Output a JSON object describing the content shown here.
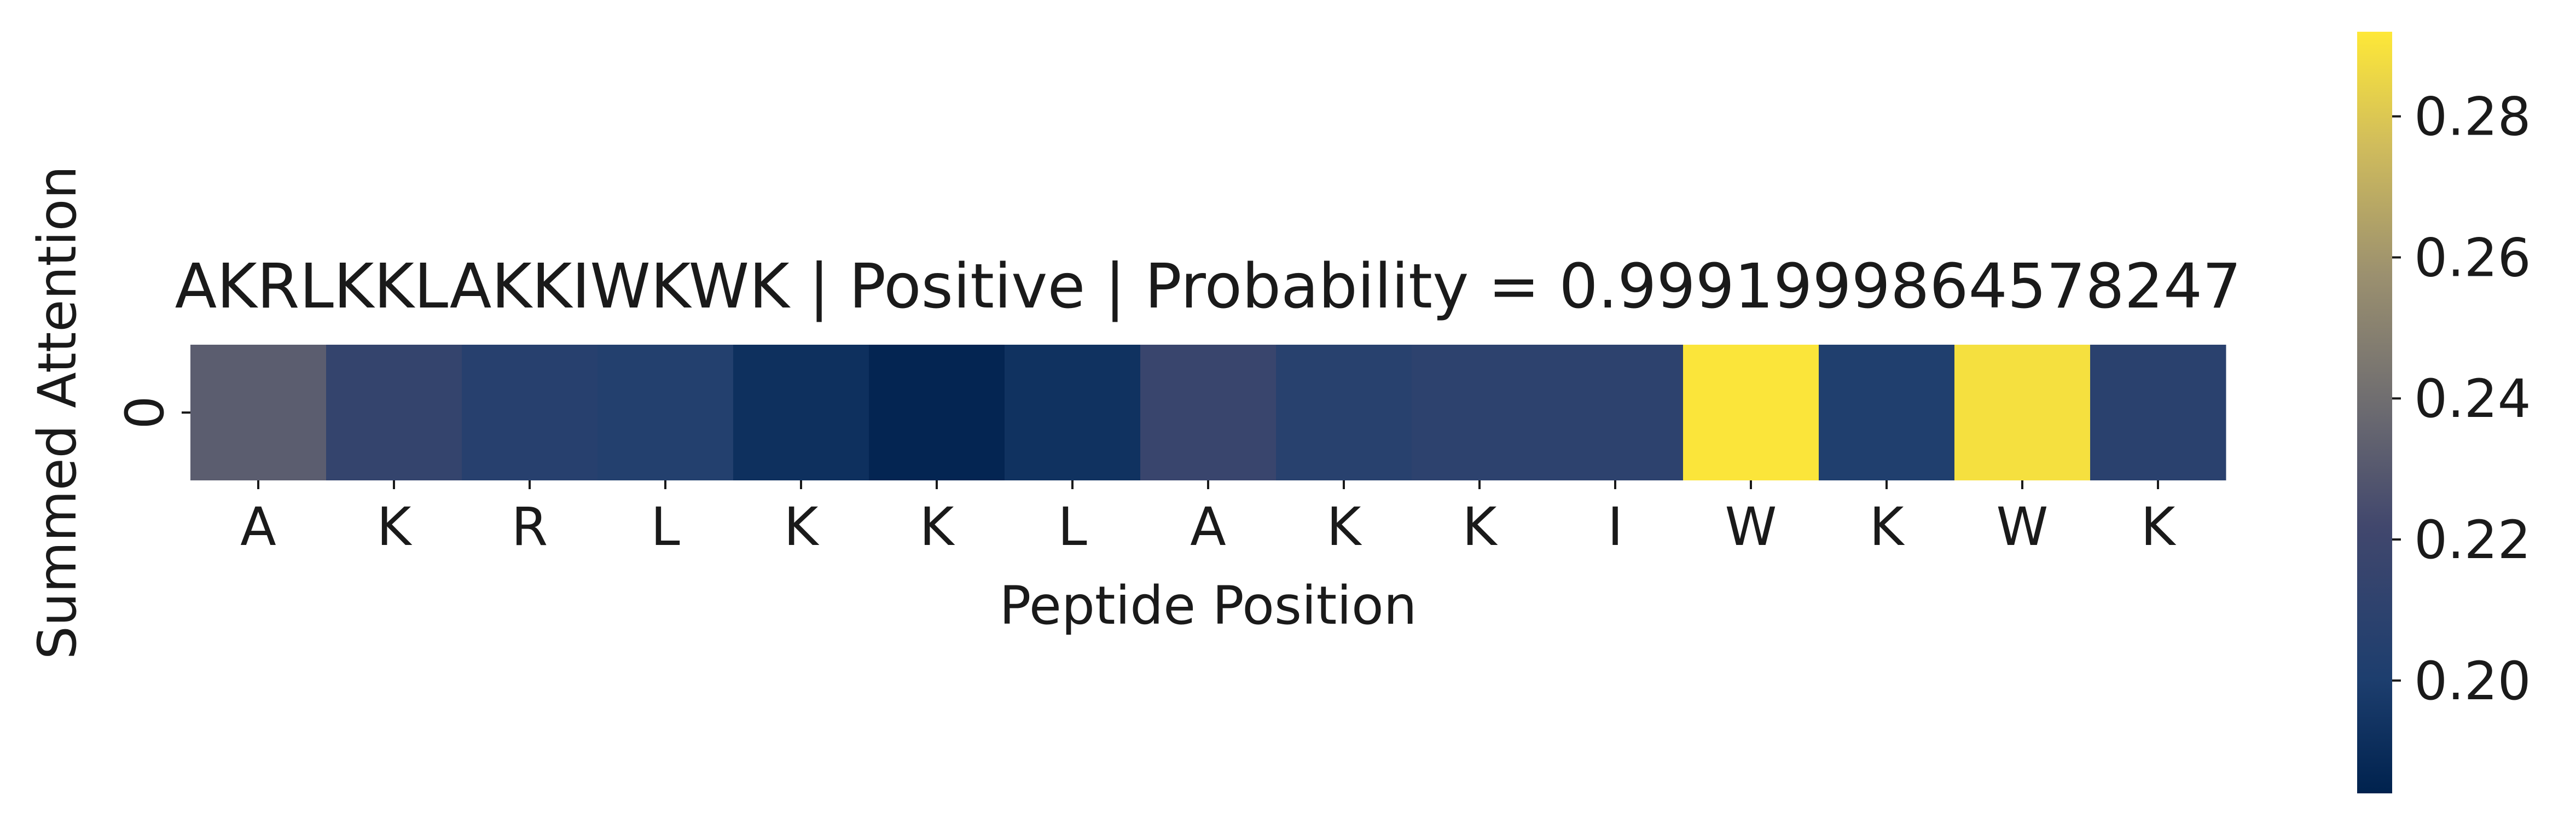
{
  "chart_data": {
    "type": "heatmap",
    "title": "AKRLKKLAKKIWKWK | Positive | Probability = 0.9991999864578247",
    "xlabel": "Peptide Position",
    "ylabel": "Summed Attention",
    "x_tick_labels": [
      "A",
      "K",
      "R",
      "L",
      "K",
      "K",
      "L",
      "A",
      "K",
      "K",
      "I",
      "W",
      "K",
      "W",
      "K"
    ],
    "y_tick_labels": [
      "0"
    ],
    "values": [
      [
        0.232,
        0.214,
        0.206,
        0.204,
        0.192,
        0.186,
        0.193,
        0.217,
        0.207,
        0.21,
        0.21,
        0.291,
        0.202,
        0.289,
        0.208
      ]
    ],
    "colormap": "cividis",
    "colorbar": {
      "min": 0.184,
      "max": 0.292,
      "ticks": [
        0.2,
        0.22,
        0.24,
        0.26,
        0.28
      ],
      "tick_labels": [
        "0.20",
        "0.22",
        "0.24",
        "0.26",
        "0.28"
      ]
    },
    "grid": false
  }
}
